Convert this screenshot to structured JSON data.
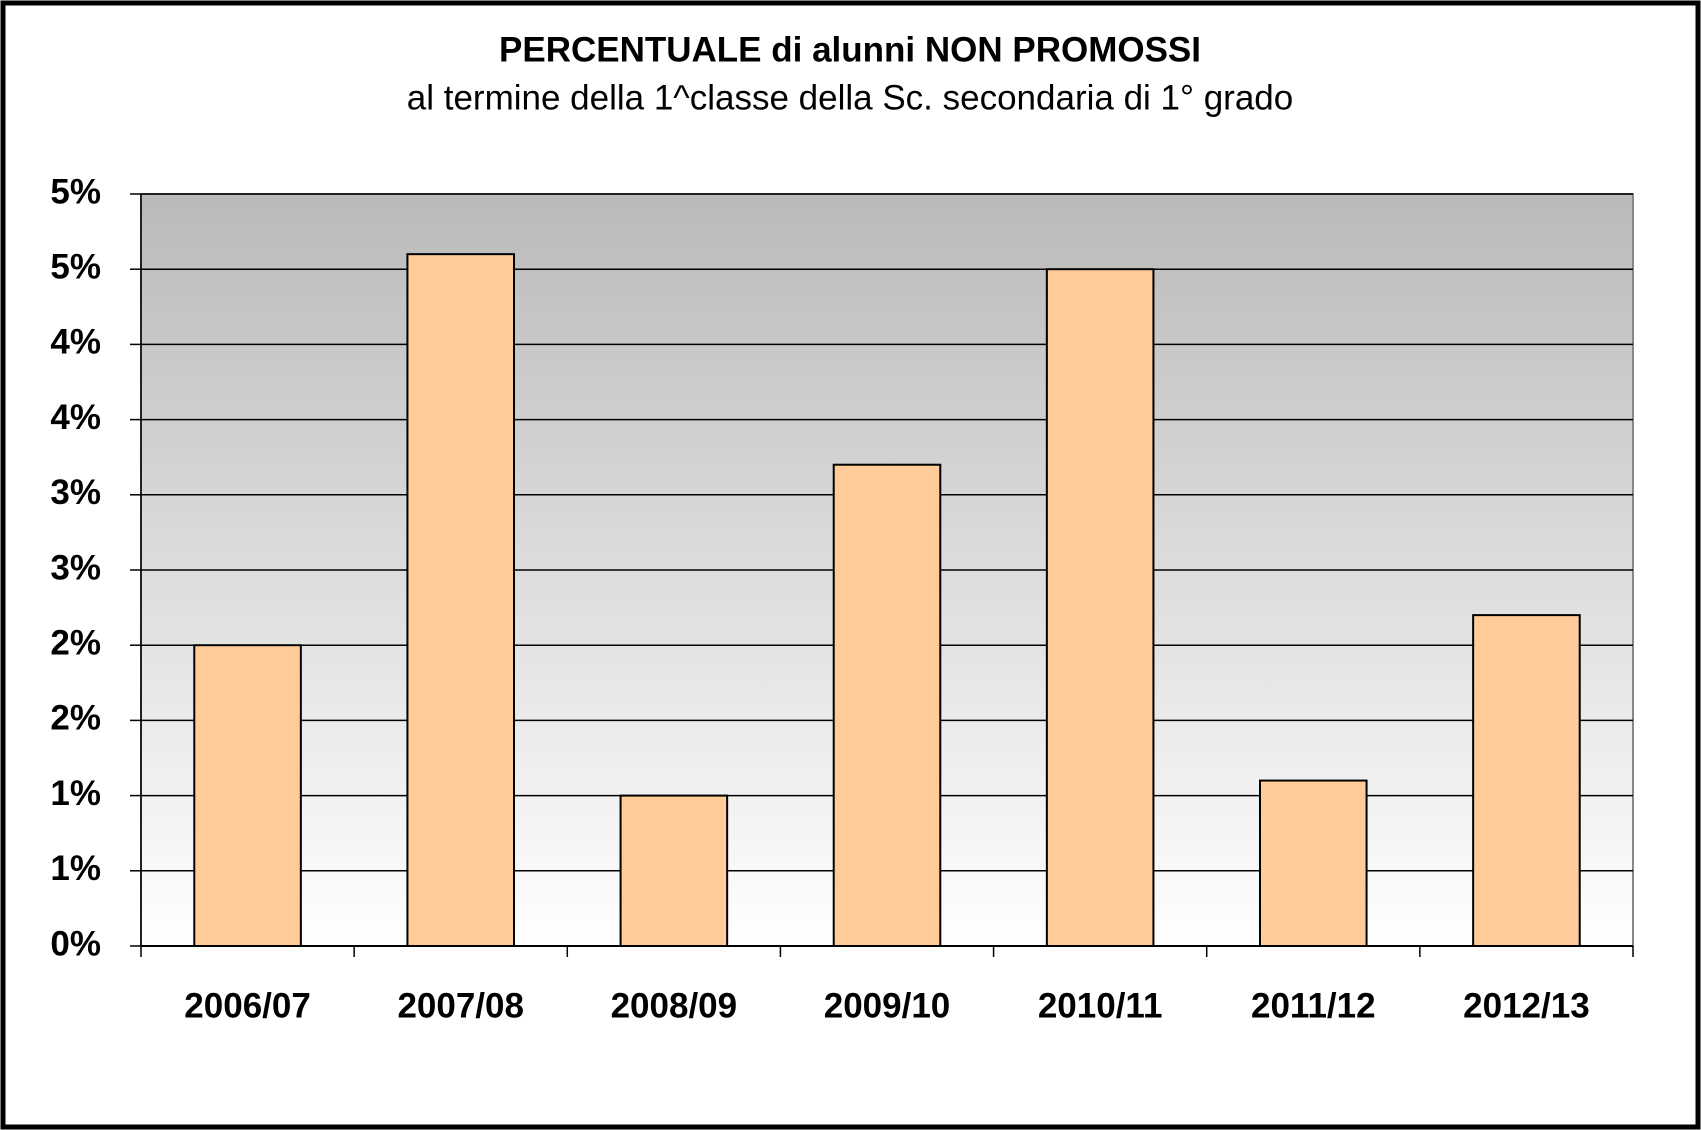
{
  "chart_data": {
    "type": "bar",
    "title": "PERCENTUALE di alunni NON PROMOSSI",
    "subtitle": "al termine della 1^classe della Sc. secondaria di 1° grado",
    "categories": [
      "2006/07",
      "2007/08",
      "2008/09",
      "2009/10",
      "2010/11",
      "2011/12",
      "2012/13"
    ],
    "values": [
      2.0,
      4.6,
      1.0,
      3.2,
      4.5,
      1.1,
      2.2
    ],
    "color": "#ffcc99",
    "ylim": [
      0,
      5
    ],
    "yticks": [
      {
        "value": 0,
        "label": "0%"
      },
      {
        "value": 0.5,
        "label": "1%"
      },
      {
        "value": 1,
        "label": "1%"
      },
      {
        "value": 1.5,
        "label": "2%"
      },
      {
        "value": 2,
        "label": "2%"
      },
      {
        "value": 2.5,
        "label": "3%"
      },
      {
        "value": 3,
        "label": "3%"
      },
      {
        "value": 3.5,
        "label": "4%"
      },
      {
        "value": 4,
        "label": "4%"
      },
      {
        "value": 4.5,
        "label": "5%"
      },
      {
        "value": 5,
        "label": "5%"
      }
    ],
    "grid": true
  }
}
